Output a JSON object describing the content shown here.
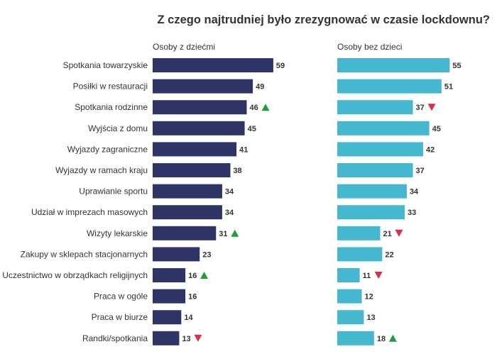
{
  "chart_data": {
    "type": "bar",
    "orientation": "horizontal",
    "title": "Z czego najtrudniej było zrezygnować w czasie lockdownu?",
    "categories": [
      "Spotkania towarzyskie",
      "Posiłki w restauracji",
      "Spotkania rodzinne",
      "Wyjścia z domu",
      "Wyjazdy zagraniczne",
      "Wyjazdy w ramach kraju",
      "Uprawianie sportu",
      "Udział w imprezach masowych",
      "Wizyty lekarskie",
      "Zakupy w sklepach stacjonarnych",
      "Uczestnictwo w obrządkach religijnych",
      "Praca w ogóle",
      "Praca w biurze",
      "Randki/spotkania"
    ],
    "series": [
      {
        "name": "Osoby z dziećmi",
        "color": "#2e3566",
        "values": [
          59,
          49,
          46,
          45,
          41,
          38,
          34,
          34,
          31,
          23,
          16,
          16,
          14,
          13
        ],
        "markers": [
          "",
          "",
          "up",
          "",
          "",
          "",
          "",
          "",
          "up",
          "",
          "up",
          "",
          "",
          "down"
        ]
      },
      {
        "name": "Osoby bez dzieci",
        "color": "#45b8d0",
        "values": [
          55,
          51,
          37,
          45,
          42,
          37,
          34,
          33,
          21,
          22,
          11,
          12,
          13,
          18
        ],
        "markers": [
          "",
          "",
          "down",
          "",
          "",
          "",
          "",
          "",
          "down",
          "",
          "down",
          "",
          "",
          "up"
        ]
      }
    ],
    "marker_colors": {
      "up": "#1e9e3a",
      "down": "#d6304a"
    },
    "grid": false
  }
}
